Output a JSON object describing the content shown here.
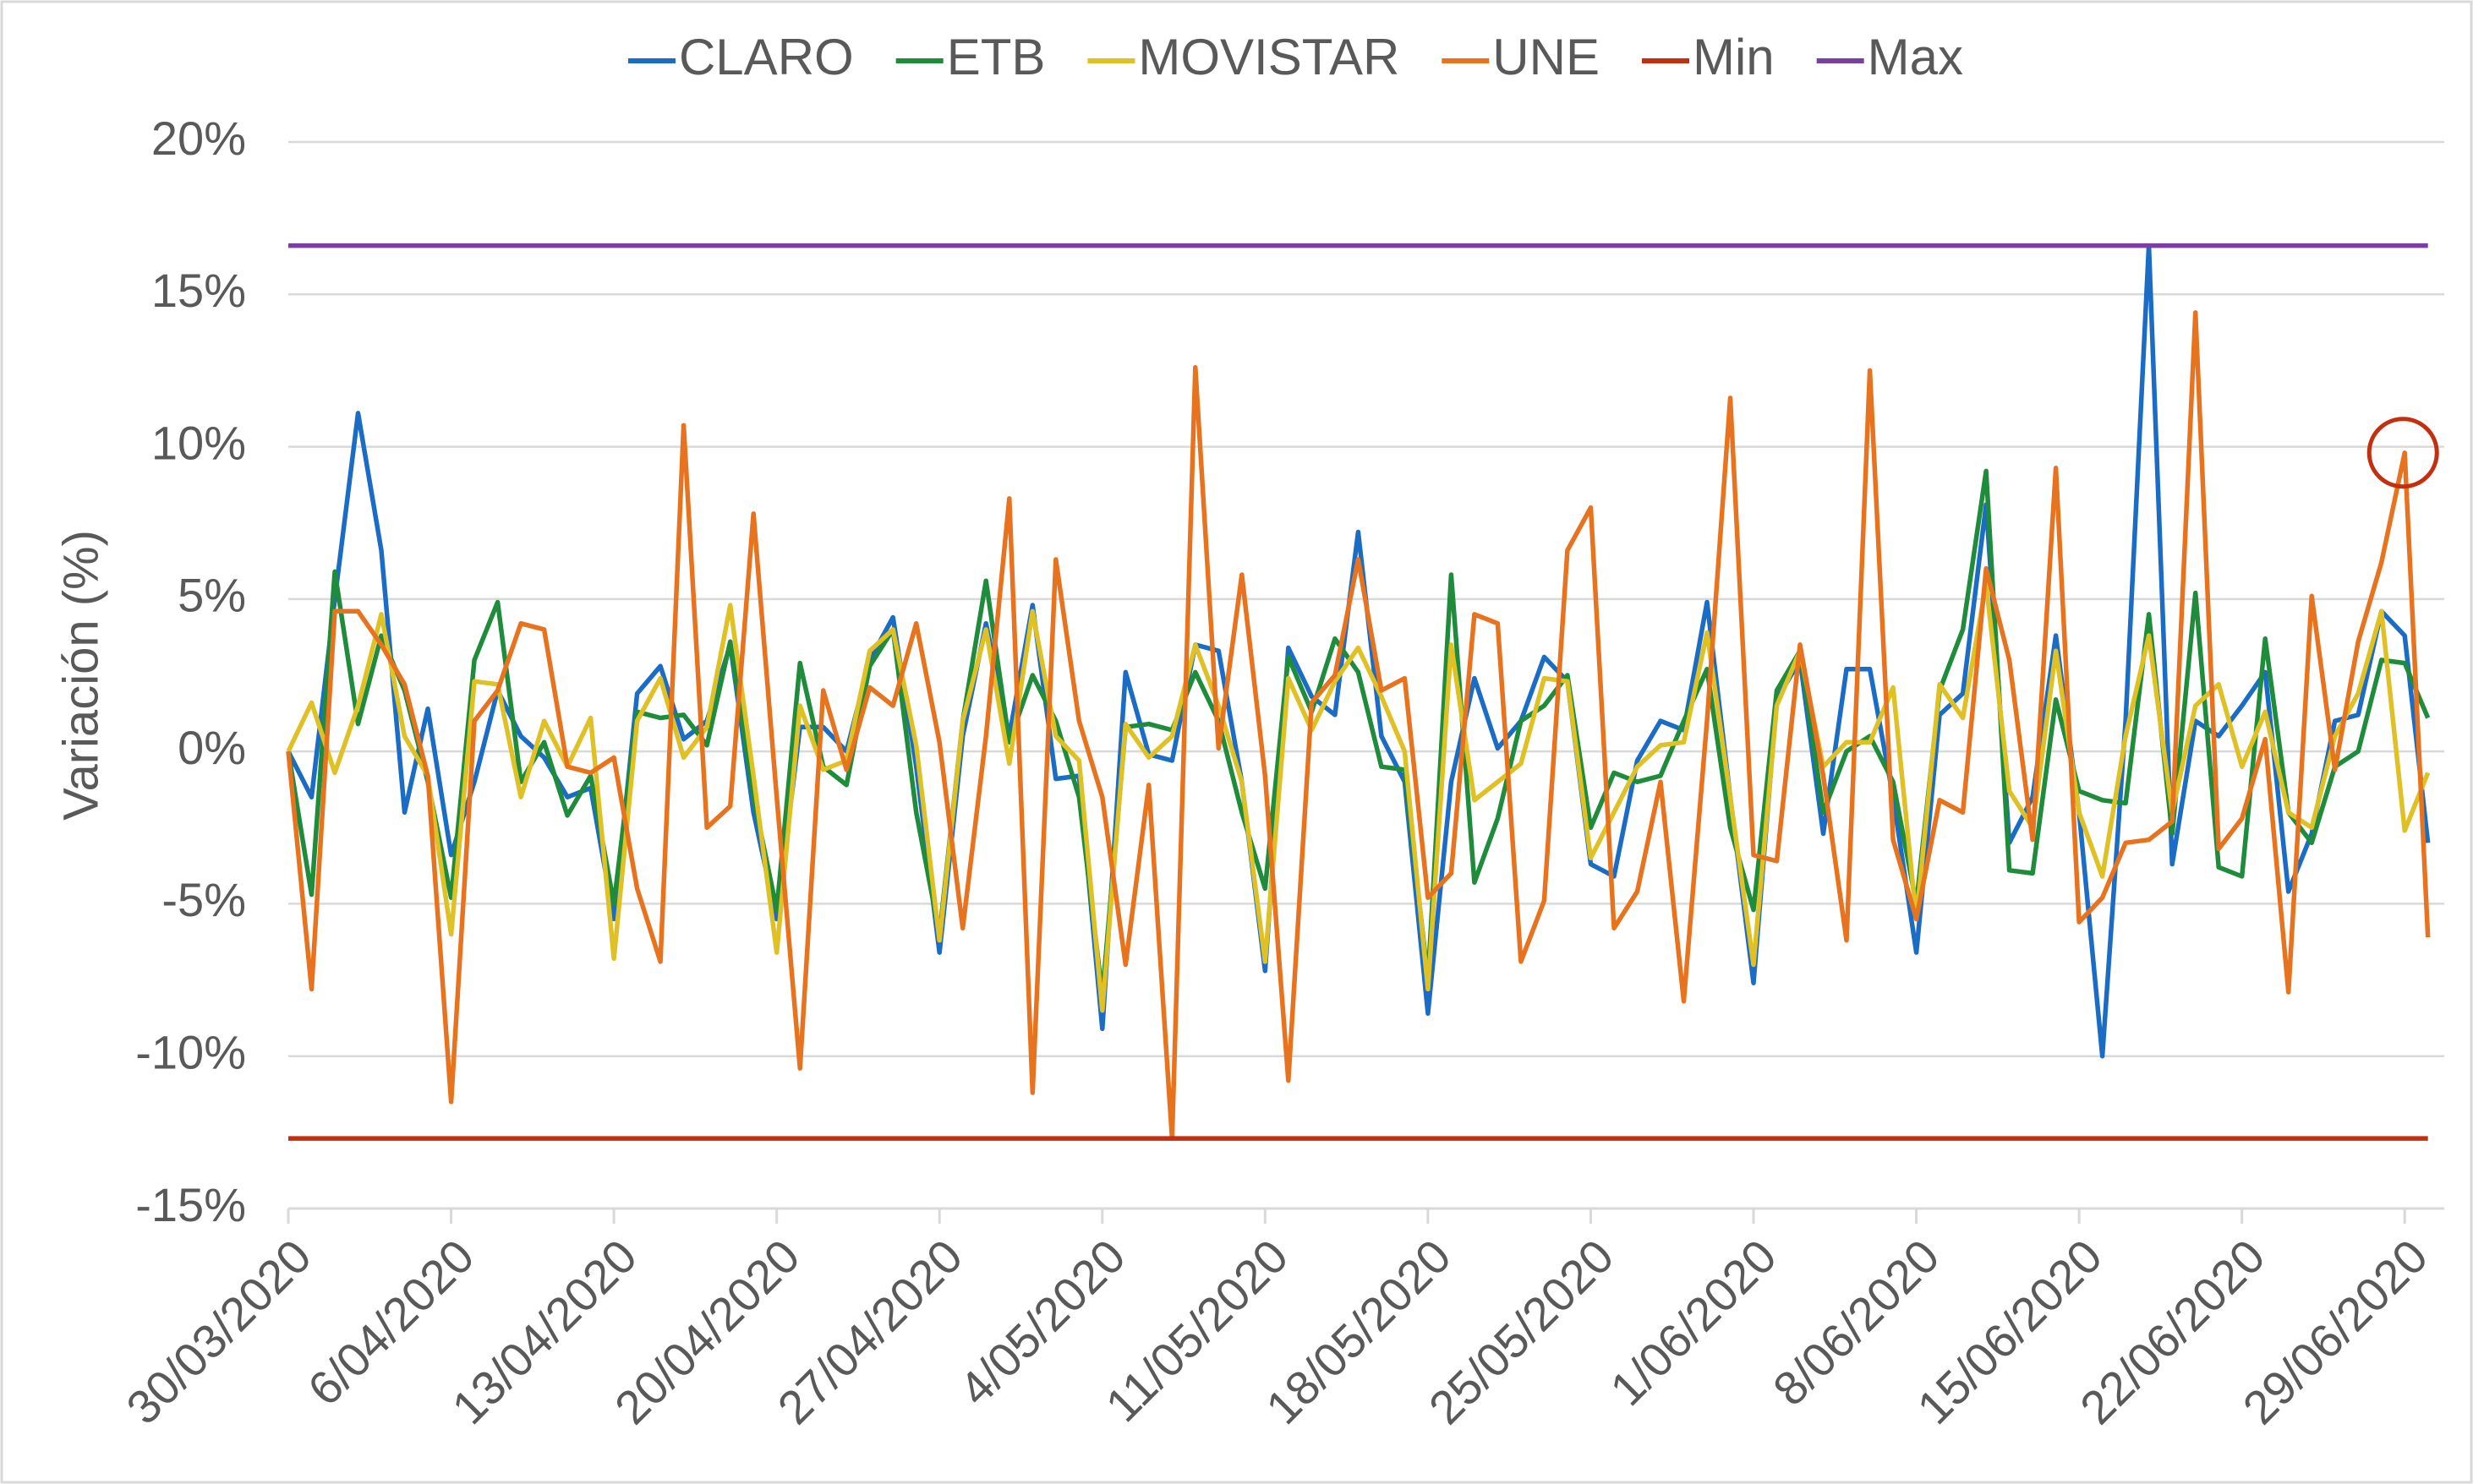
{
  "chart_data": {
    "type": "line",
    "ylabel": "Variación (%)",
    "categories": [
      "30/03/2020",
      null,
      null,
      null,
      null,
      null,
      null,
      "6/04/2020",
      null,
      null,
      null,
      null,
      null,
      null,
      "13/04/2020",
      null,
      null,
      null,
      null,
      null,
      null,
      "20/04/2020",
      null,
      null,
      null,
      null,
      null,
      null,
      "27/04/2020",
      null,
      null,
      null,
      null,
      null,
      null,
      "4/05/2020",
      null,
      null,
      null,
      null,
      null,
      null,
      "11/05/2020",
      null,
      null,
      null,
      null,
      null,
      null,
      "18/05/2020",
      null,
      null,
      null,
      null,
      null,
      null,
      "25/05/2020",
      null,
      null,
      null,
      null,
      null,
      null,
      "1/06/2020",
      null,
      null,
      null,
      null,
      null,
      null,
      "8/06/2020",
      null,
      null,
      null,
      null,
      null,
      null,
      "15/06/2020",
      null,
      null,
      null,
      null,
      null,
      null,
      "22/06/2020",
      null,
      null,
      null,
      null,
      null,
      null,
      "29/06/2020",
      null
    ],
    "series": [
      {
        "name": "CLARO",
        "color": "#1a6cc4",
        "values": [
          0,
          -1.5,
          5.0,
          11.1,
          6.6,
          -2.0,
          1.4,
          -3.4,
          -1.0,
          2.0,
          0.5,
          -0.2,
          -1.5,
          -1.2,
          -5.5,
          1.9,
          2.8,
          0.4,
          1.0,
          3.5,
          -2.0,
          -5.5,
          0.8,
          0.8,
          0,
          3.0,
          4.4,
          -0.5,
          -6.6,
          0.5,
          4.2,
          0.5,
          4.8,
          -0.9,
          -0.8,
          -9.1,
          2.6,
          -0.1,
          -0.3,
          3.5,
          3.3,
          -1.0,
          -7.2,
          3.4,
          1.8,
          1.2,
          7.2,
          0.5,
          -1.0,
          -8.6,
          -1.0,
          2.4,
          0.1,
          1.0,
          3.1,
          2.3,
          -3.7,
          -4.1,
          -0.3,
          1.0,
          0.7,
          4.9,
          -1.5,
          -7.6,
          1.7,
          3.0,
          -2.7,
          2.7,
          2.7,
          -1.5,
          -6.6,
          1.2,
          1.9,
          8.1,
          -3.0,
          -1.5,
          3.8,
          -2.0,
          -10.0,
          1.0,
          16.6,
          -3.7,
          1.0,
          0.5,
          1.5,
          2.6,
          -4.6,
          -2.7,
          1.0,
          1.2,
          4.6,
          3.8,
          -3.0
        ]
      },
      {
        "name": "ETB",
        "color": "#1e8c3a",
        "values": [
          0,
          -4.7,
          5.9,
          0.9,
          3.8,
          2.0,
          -1.0,
          -4.8,
          3.0,
          4.9,
          -1.0,
          0.3,
          -2.1,
          -0.8,
          -5.0,
          1.3,
          1.1,
          1.2,
          0.2,
          3.6,
          -1.5,
          -5.2,
          2.9,
          -0.5,
          -1.1,
          2.8,
          4.0,
          -2.0,
          -6.0,
          1.0,
          5.6,
          0.3,
          2.5,
          1.0,
          -1.5,
          -8.0,
          0.8,
          0.9,
          0.7,
          2.6,
          1.0,
          -2.0,
          -4.5,
          3.1,
          1.3,
          3.7,
          2.6,
          -0.5,
          -0.6,
          -7.5,
          5.8,
          -4.3,
          -2.2,
          1.0,
          1.5,
          2.5,
          -2.5,
          -0.7,
          -1.0,
          -0.8,
          1.0,
          2.7,
          -2.5,
          -5.2,
          2.0,
          3.3,
          -2.0,
          0,
          0.5,
          -1.0,
          -5.0,
          2.0,
          4.0,
          9.2,
          -3.9,
          -4.0,
          1.7,
          -1.3,
          -1.6,
          -1.7,
          4.5,
          -2.7,
          5.2,
          -3.8,
          -4.1,
          3.7,
          -2.0,
          -3.0,
          -0.5,
          0,
          3.0,
          2.9,
          1.1
        ]
      },
      {
        "name": "MOVISTAR",
        "color": "#dfc126",
        "values": [
          0,
          1.6,
          -0.7,
          1.5,
          4.5,
          0.5,
          -0.8,
          -6.0,
          2.3,
          2.2,
          -1.5,
          1.0,
          -0.5,
          1.1,
          -6.8,
          1.0,
          2.4,
          -0.2,
          0.8,
          4.8,
          -0.8,
          -6.6,
          1.5,
          -0.6,
          -0.3,
          3.3,
          4.0,
          0.2,
          -6.2,
          1.0,
          4.0,
          -0.4,
          4.6,
          0.5,
          -0.3,
          -8.5,
          0.9,
          -0.2,
          0.5,
          3.5,
          1.5,
          -1.0,
          -6.9,
          2.4,
          0.7,
          2.3,
          3.4,
          1.8,
          0,
          -7.8,
          3.5,
          -1.6,
          -1.0,
          -0.4,
          2.4,
          2.3,
          -3.5,
          -2.0,
          -0.5,
          0.2,
          0.3,
          3.9,
          -1.5,
          -7.0,
          1.5,
          3.3,
          -0.5,
          0.3,
          0.3,
          2.1,
          -5.5,
          2.2,
          1.1,
          5.5,
          -1.3,
          -2.5,
          3.3,
          -2.0,
          -4.1,
          0.5,
          3.8,
          -2.0,
          1.5,
          2.2,
          -0.5,
          1.3,
          -2.0,
          -2.5,
          0.5,
          1.9,
          4.6,
          -2.6,
          -0.7
        ]
      },
      {
        "name": "UNE",
        "color": "#e8731f",
        "values": [
          0,
          -7.8,
          4.6,
          4.6,
          3.5,
          2.2,
          -0.8,
          -11.5,
          1.0,
          2.0,
          4.2,
          4.0,
          -0.5,
          -0.7,
          -0.2,
          -4.5,
          -6.9,
          10.7,
          -2.5,
          -1.8,
          7.8,
          -1.5,
          -10.4,
          2.0,
          -0.6,
          2.1,
          1.5,
          4.2,
          0.3,
          -5.8,
          0.5,
          8.3,
          -11.2,
          6.3,
          1.0,
          -1.5,
          -7.0,
          -1.1,
          -12.7,
          12.6,
          0.1,
          5.8,
          -0.8,
          -10.8,
          1.6,
          2.5,
          6.3,
          2.0,
          2.4,
          -4.8,
          -4.0,
          4.5,
          4.2,
          -6.9,
          -4.9,
          6.6,
          8.0,
          -5.8,
          -4.6,
          -1.0,
          -8.2,
          1.0,
          11.6,
          -3.4,
          -3.6,
          3.5,
          -0.8,
          -6.2,
          12.5,
          -2.9,
          -5.5,
          -1.6,
          -2.0,
          6.0,
          3.0,
          -2.9,
          9.3,
          -5.6,
          -4.8,
          -3.0,
          -2.9,
          -2.3,
          14.4,
          -3.2,
          -2.2,
          0.4,
          -7.9,
          5.1,
          -0.6,
          3.6,
          6.2,
          9.8,
          -6.1
        ]
      },
      {
        "name": "Min",
        "color": "#c3300f",
        "values": [
          -12.7,
          -12.7,
          -12.7,
          -12.7,
          -12.7,
          -12.7,
          -12.7,
          -12.7,
          -12.7,
          -12.7,
          -12.7,
          -12.7,
          -12.7,
          -12.7,
          -12.7,
          -12.7,
          -12.7,
          -12.7,
          -12.7,
          -12.7,
          -12.7,
          -12.7,
          -12.7,
          -12.7,
          -12.7,
          -12.7,
          -12.7,
          -12.7,
          -12.7,
          -12.7,
          -12.7,
          -12.7,
          -12.7,
          -12.7,
          -12.7,
          -12.7,
          -12.7,
          -12.7,
          -12.7,
          -12.7,
          -12.7,
          -12.7,
          -12.7,
          -12.7,
          -12.7,
          -12.7,
          -12.7,
          -12.7,
          -12.7,
          -12.7,
          -12.7,
          -12.7,
          -12.7,
          -12.7,
          -12.7,
          -12.7,
          -12.7,
          -12.7,
          -12.7,
          -12.7,
          -12.7,
          -12.7,
          -12.7,
          -12.7,
          -12.7,
          -12.7,
          -12.7,
          -12.7,
          -12.7,
          -12.7,
          -12.7,
          -12.7,
          -12.7,
          -12.7,
          -12.7,
          -12.7,
          -12.7,
          -12.7,
          -12.7,
          -12.7,
          -12.7,
          -12.7,
          -12.7,
          -12.7,
          -12.7,
          -12.7,
          -12.7,
          -12.7,
          -12.7,
          -12.7,
          -12.7,
          -12.7,
          -12.7
        ]
      },
      {
        "name": "Max",
        "color": "#7b3fa3",
        "values": [
          16.6,
          16.6,
          16.6,
          16.6,
          16.6,
          16.6,
          16.6,
          16.6,
          16.6,
          16.6,
          16.6,
          16.6,
          16.6,
          16.6,
          16.6,
          16.6,
          16.6,
          16.6,
          16.6,
          16.6,
          16.6,
          16.6,
          16.6,
          16.6,
          16.6,
          16.6,
          16.6,
          16.6,
          16.6,
          16.6,
          16.6,
          16.6,
          16.6,
          16.6,
          16.6,
          16.6,
          16.6,
          16.6,
          16.6,
          16.6,
          16.6,
          16.6,
          16.6,
          16.6,
          16.6,
          16.6,
          16.6,
          16.6,
          16.6,
          16.6,
          16.6,
          16.6,
          16.6,
          16.6,
          16.6,
          16.6,
          16.6,
          16.6,
          16.6,
          16.6,
          16.6,
          16.6,
          16.6,
          16.6,
          16.6,
          16.6,
          16.6,
          16.6,
          16.6,
          16.6,
          16.6,
          16.6,
          16.6,
          16.6,
          16.6,
          16.6,
          16.6,
          16.6,
          16.6,
          16.6,
          16.6,
          16.6,
          16.6,
          16.6,
          16.6,
          16.6,
          16.6,
          16.6,
          16.6,
          16.6,
          16.6,
          16.6,
          16.6
        ]
      }
    ],
    "ylim": [
      -15,
      20
    ],
    "yticks": [
      {
        "value": -15,
        "label": "-15%"
      },
      {
        "value": -10,
        "label": "-10%"
      },
      {
        "value": -5,
        "label": "-5%"
      },
      {
        "value": 0,
        "label": "0%"
      },
      {
        "value": 5,
        "label": "5%"
      },
      {
        "value": 10,
        "label": "10%"
      },
      {
        "value": 15,
        "label": "15%"
      },
      {
        "value": 20,
        "label": "20%"
      }
    ],
    "grid": true,
    "legend": "top"
  }
}
